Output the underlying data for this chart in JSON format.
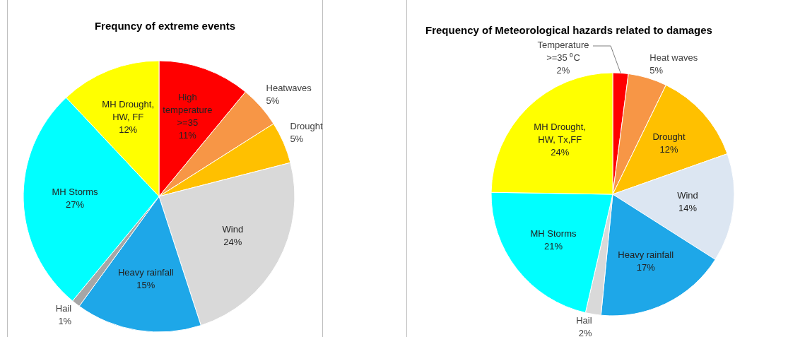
{
  "chart_data": [
    {
      "type": "pie",
      "title": "Frequncy of extreme events",
      "categories": [
        "High temperature >=35",
        "Heatwaves",
        "Drought",
        "Wind",
        "Heavy rainfall",
        "Hail",
        "MH Storms",
        "MH Drought, HW, FF"
      ],
      "values": [
        11,
        5,
        5,
        24,
        15,
        1,
        27,
        12
      ],
      "value_labels": [
        "11%",
        "5%",
        "5%",
        "24%",
        "15%",
        "1%",
        "27%",
        "12%"
      ],
      "colors": [
        "#ff0000",
        "#f79646",
        "#ffc000",
        "#d9d9d9",
        "#1ea7e8",
        "#a6a6a6",
        "#00ffff",
        "#ffff00"
      ],
      "legend": false
    },
    {
      "type": "pie",
      "title": "Frequency of Meteorological hazards related to damages",
      "categories": [
        "Temperature >=35 ⁰C",
        "Heat waves",
        "Drought",
        "Wind",
        "Heavy rainfall",
        "Hail",
        "MH Storms",
        "MH Drought, HW, Tx,FF"
      ],
      "values": [
        2,
        5,
        12,
        14,
        17,
        2,
        21,
        24
      ],
      "value_labels": [
        "2%",
        "5%",
        "12%",
        "14%",
        "17%",
        "2%",
        "21%",
        "24%"
      ],
      "colors": [
        "#ff0000",
        "#f79646",
        "#ffc000",
        "#dce6f2",
        "#1ea7e8",
        "#d9d9d9",
        "#00ffff",
        "#ffff00"
      ],
      "legend": false
    }
  ]
}
